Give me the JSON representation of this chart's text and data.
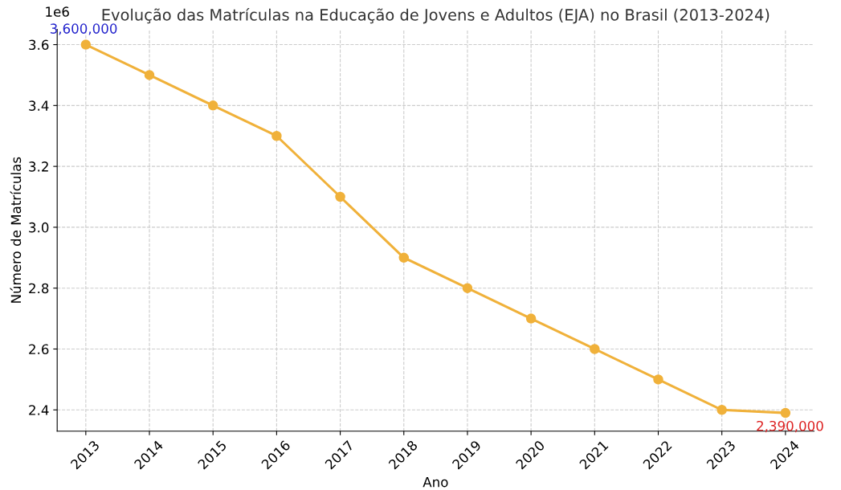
{
  "chart_data": {
    "type": "line",
    "title": "Evolução das Matrículas na Educação de Jovens e Adultos (EJA) no Brasil (2013-2024)",
    "xlabel": "Ano",
    "ylabel": "Número de Matrículas",
    "x": [
      2013,
      2014,
      2015,
      2016,
      2017,
      2018,
      2019,
      2020,
      2021,
      2022,
      2023,
      2024
    ],
    "series": [
      {
        "color": "#f0b13a",
        "values": [
          3.6,
          3.5,
          3.4,
          3.3,
          3.1,
          2.9,
          2.8,
          2.7,
          2.6,
          2.5,
          2.4,
          2.39
        ]
      }
    ],
    "xlim": [
      2012.55,
      2024.45
    ],
    "xticks": [
      2013,
      2014,
      2015,
      2016,
      2017,
      2018,
      2019,
      2020,
      2021,
      2022,
      2023,
      2024
    ],
    "ylim": [
      2.33,
      3.65
    ],
    "yticks": [
      2.4,
      2.6,
      2.8,
      {
        "value": 3.0,
        "label": "3.0"
      },
      3.2,
      3.4,
      3.6
    ],
    "annotations": [
      "1e6",
      {
        "text": "3,600,000",
        "x": 2013,
        "y": 3.6
      },
      {
        "text": "2,390,000",
        "x": 2024,
        "y": 2.39
      }
    ],
    "grid": true,
    "marker": "circle",
    "line_style": "solid"
  }
}
